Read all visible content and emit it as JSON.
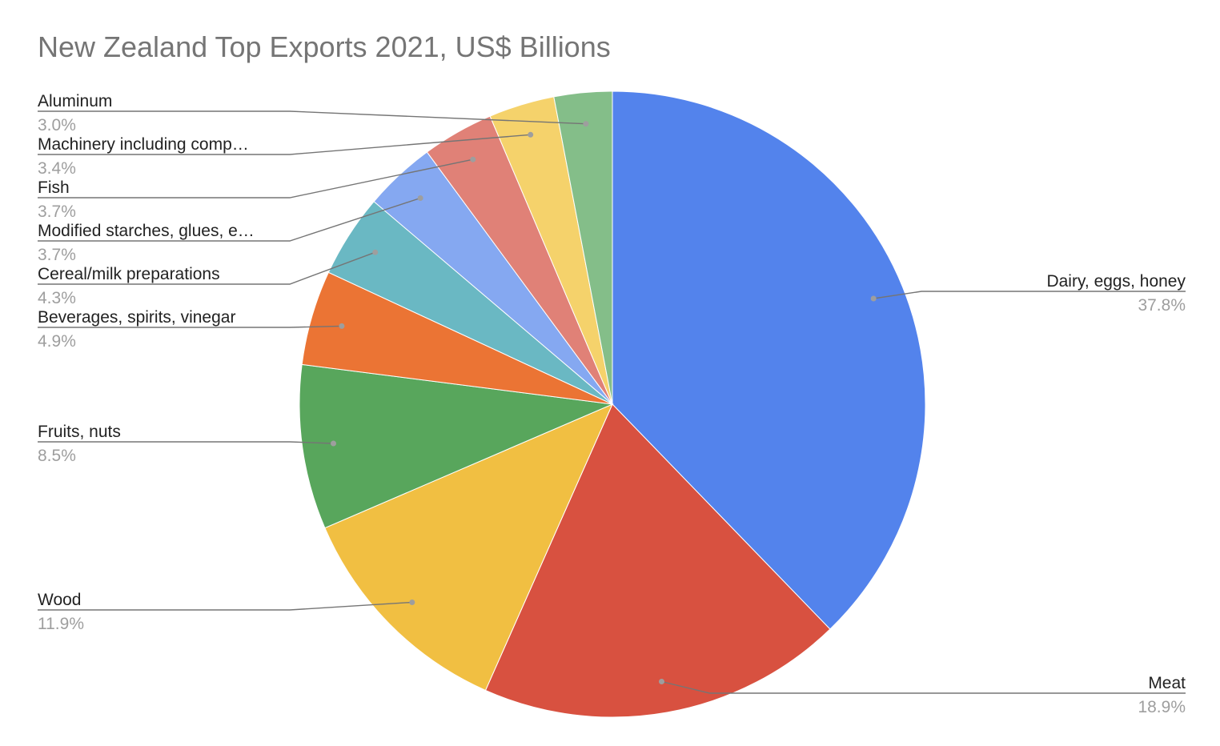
{
  "chart_data": {
    "type": "pie",
    "title": "New Zealand Top Exports 2021, US$ Billions",
    "unit": "%",
    "slices": [
      {
        "label": "Dairy, eggs, honey",
        "value": 37.8,
        "display": "37.8%",
        "color": "#5383EC"
      },
      {
        "label": "Meat",
        "value": 18.9,
        "display": "18.9%",
        "color": "#D85140"
      },
      {
        "label": "Wood",
        "value": 11.9,
        "display": "11.9%",
        "color": "#F1BF42"
      },
      {
        "label": "Fruits, nuts",
        "value": 8.5,
        "display": "8.5%",
        "color": "#58A65C"
      },
      {
        "label": "Beverages, spirits, vinegar",
        "value": 4.9,
        "display": "4.9%",
        "color": "#EB7434"
      },
      {
        "label": "Cereal/milk preparations",
        "value": 4.3,
        "display": "4.3%",
        "color": "#6AB8C3"
      },
      {
        "label": "Modified starches, glues, e…",
        "value": 3.7,
        "display": "3.7%",
        "color": "#85A8F1"
      },
      {
        "label": "Fish",
        "value": 3.7,
        "display": "3.7%",
        "color": "#E08177"
      },
      {
        "label": "Machinery including comp…",
        "value": 3.4,
        "display": "3.4%",
        "color": "#F5D26B"
      },
      {
        "label": "Aluminum",
        "value": 3.0,
        "display": "3.0%",
        "color": "#84BE89"
      }
    ]
  }
}
